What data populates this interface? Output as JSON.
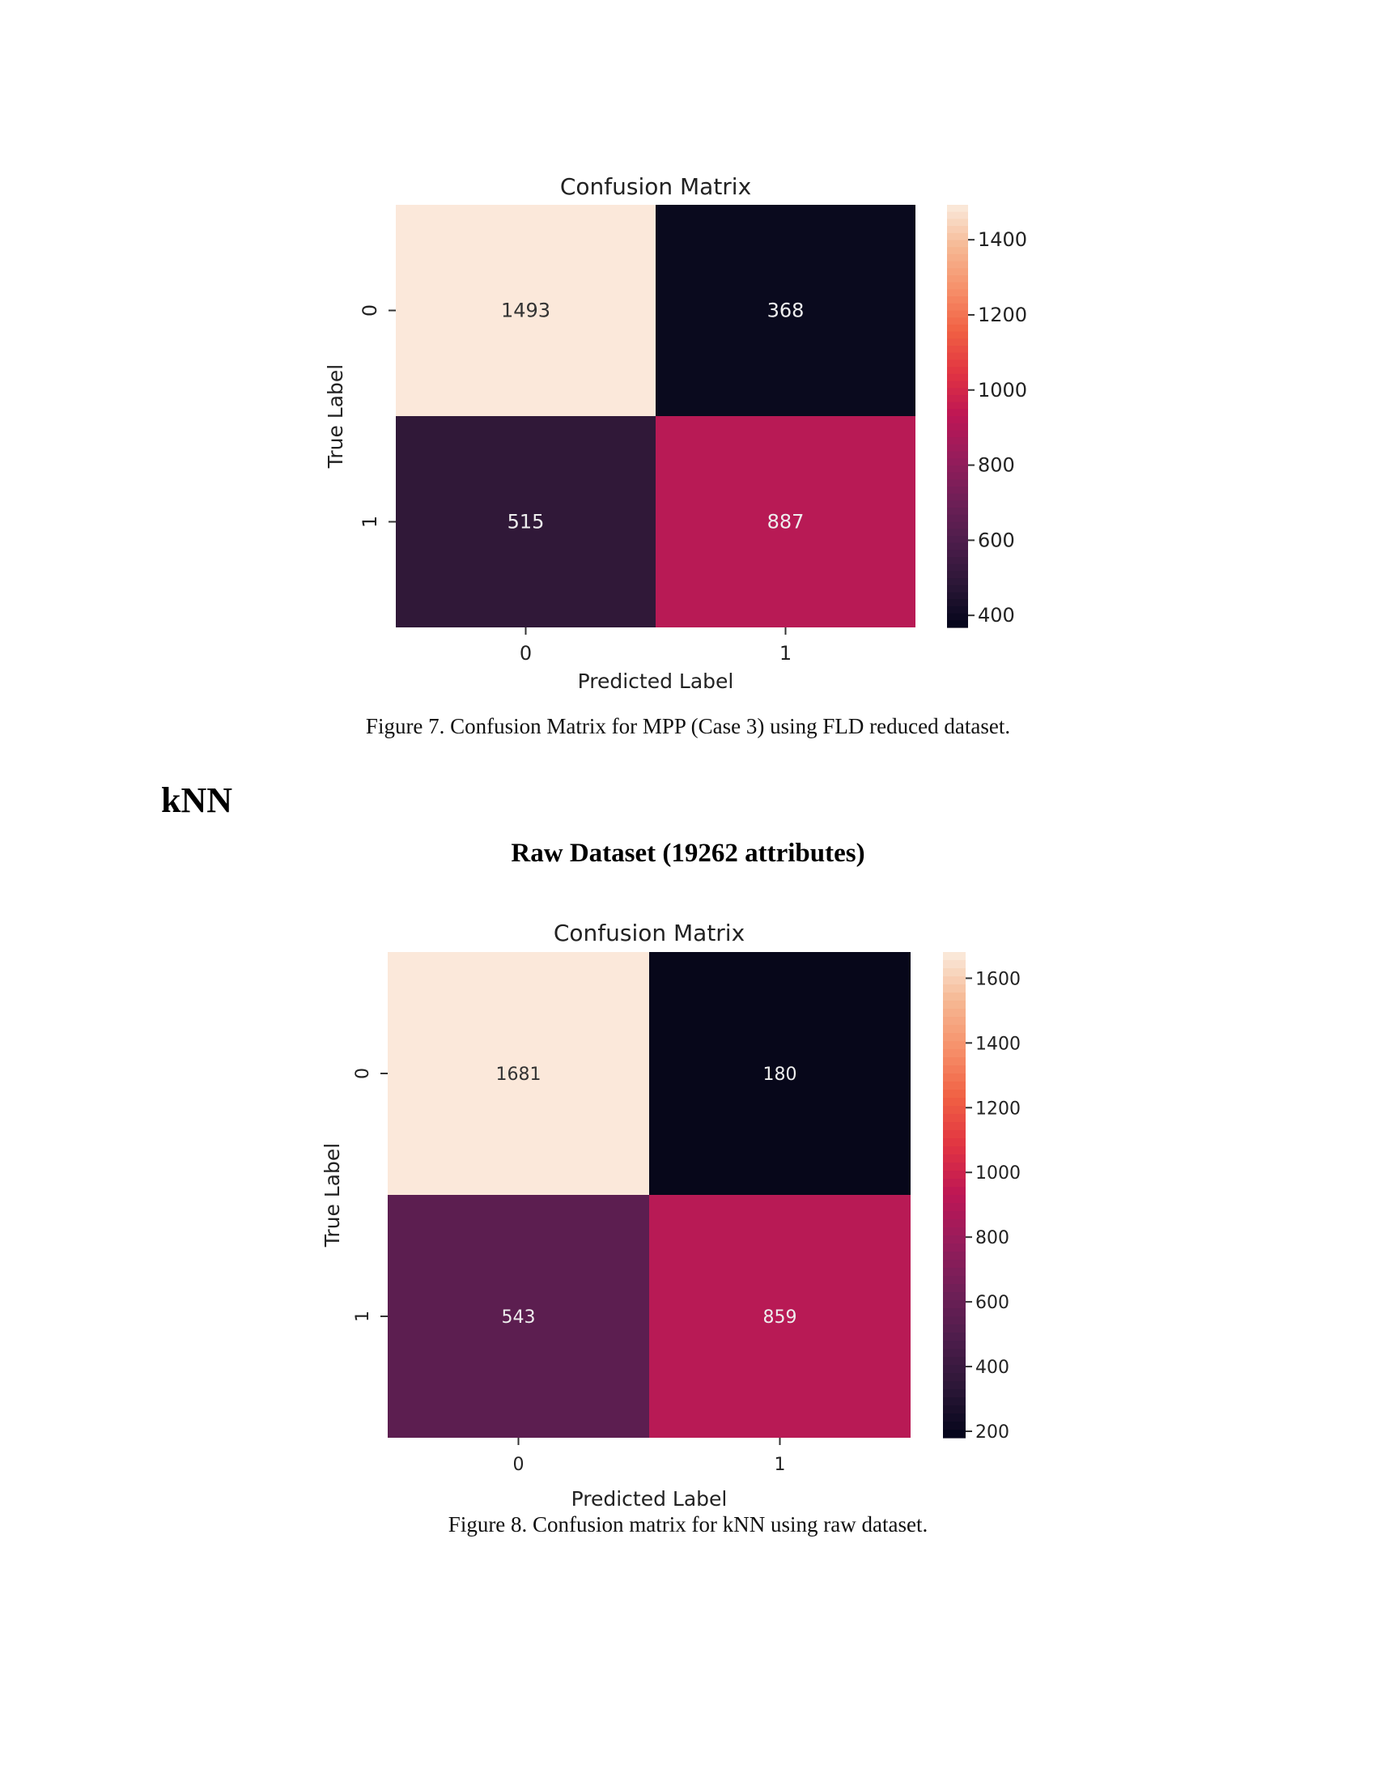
{
  "figure7": {
    "caption": "Figure 7. Confusion Matrix for MPP (Case 3) using FLD reduced dataset."
  },
  "section": {
    "heading": "kNN",
    "subheading": "Raw Dataset (19262 attributes)"
  },
  "figure8": {
    "caption": "Figure 8. Confusion matrix for kNN using raw dataset."
  },
  "chart_data": [
    {
      "type": "heatmap",
      "title": "Confusion Matrix",
      "xlabel": "Predicted Label",
      "ylabel": "True Label",
      "x_categories": [
        "0",
        "1"
      ],
      "y_categories": [
        "0",
        "1"
      ],
      "values": [
        [
          1493,
          368
        ],
        [
          515,
          887
        ]
      ],
      "colormap": "rocket",
      "colorbar": {
        "range": [
          368,
          1493
        ],
        "ticks": [
          400,
          600,
          800,
          1000,
          1200,
          1400
        ]
      },
      "colors": [
        [
          "#fbe8da",
          "#0a0a1e"
        ],
        [
          "#301838",
          "#b81a55"
        ]
      ]
    },
    {
      "type": "heatmap",
      "title": "Confusion Matrix",
      "xlabel": "Predicted Label",
      "ylabel": "True Label",
      "x_categories": [
        "0",
        "1"
      ],
      "y_categories": [
        "0",
        "1"
      ],
      "values": [
        [
          1681,
          180
        ],
        [
          543,
          859
        ]
      ],
      "colormap": "rocket",
      "colorbar": {
        "range": [
          180,
          1681
        ],
        "ticks": [
          200,
          400,
          600,
          800,
          1000,
          1200,
          1400,
          1600
        ]
      },
      "colors": [
        [
          "#fbe8da",
          "#07071a"
        ],
        [
          "#5c1e50",
          "#b81a55"
        ]
      ]
    }
  ]
}
